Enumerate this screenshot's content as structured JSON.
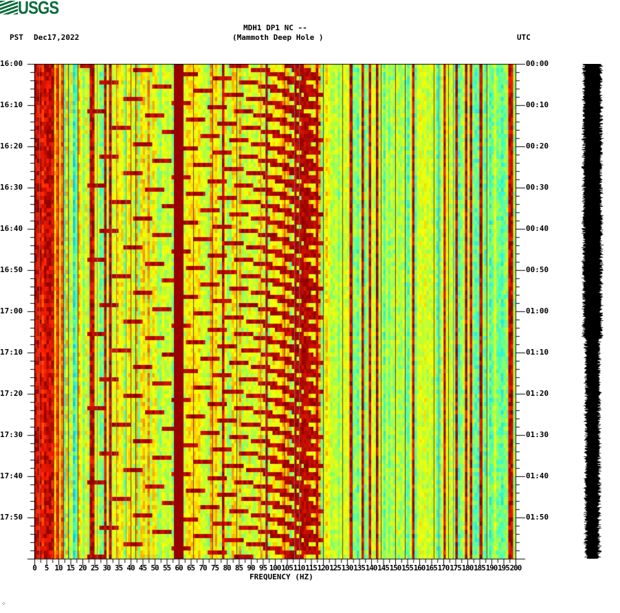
{
  "header": {
    "logo_text": "USGS",
    "station_line": "MDH1 DP1 NC --",
    "station_name": "(Mammoth Deep Hole )",
    "left_tz": "PST",
    "date": "Dec17,2022",
    "right_tz": "UTC"
  },
  "footer_mark": "⁘",
  "colors": {
    "logo": "#0a6b3a",
    "scale": [
      "#00008f",
      "#0050ff",
      "#00c8ff",
      "#40ffbf",
      "#b0ff40",
      "#ffff00",
      "#ff9000",
      "#ff2000",
      "#8f0000"
    ]
  },
  "chart_data": {
    "type": "heatmap",
    "title": "MDH1 DP1 NC -- (Mammoth Deep Hole )",
    "subtitle": "PST Dec17,2022 / UTC",
    "xlabel": "FREQUENCY (HZ)",
    "ylabel_left": "PST",
    "ylabel_right": "UTC",
    "xlim": [
      0,
      200
    ],
    "x_ticks": [
      0,
      5,
      10,
      15,
      20,
      25,
      30,
      35,
      40,
      45,
      50,
      55,
      60,
      65,
      70,
      75,
      80,
      85,
      90,
      95,
      100,
      105,
      110,
      115,
      120,
      125,
      130,
      135,
      140,
      145,
      150,
      155,
      160,
      165,
      170,
      175,
      180,
      185,
      190,
      195,
      200
    ],
    "y_ticks_left": [
      "16:00",
      "16:10",
      "16:20",
      "16:30",
      "16:40",
      "16:50",
      "17:00",
      "17:10",
      "17:20",
      "17:30",
      "17:40",
      "17:50"
    ],
    "y_ticks_right": [
      "00:00",
      "00:10",
      "00:20",
      "00:30",
      "00:40",
      "00:50",
      "01:00",
      "01:10",
      "01:20",
      "01:30",
      "01:40",
      "01:50"
    ],
    "duration_minutes": 120,
    "features": {
      "strong_low_freq_band_hz": [
        0,
        10
      ],
      "persistent_line_hz": 60,
      "gliding_tones": "repeated upward-sweeping tones roughly every 3-4 minutes from ~20 Hz to ~120 Hz",
      "high_freq_background": "cyan/green noise above ~125 Hz"
    },
    "side_trace": "seismogram amplitude trace (black) spanning full time window"
  }
}
